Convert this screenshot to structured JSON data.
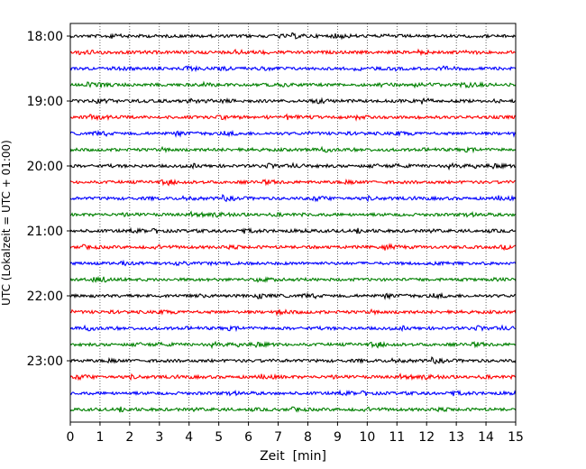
{
  "chart_data": {
    "type": "line",
    "subtype": "helicorder",
    "xlabel": "Zeit  [min]",
    "ylabel": "UTC (Lokalzeit = UTC + 01:00)",
    "xlim": [
      0,
      15
    ],
    "xticks": [
      0,
      1,
      2,
      3,
      4,
      5,
      6,
      7,
      8,
      9,
      10,
      11,
      12,
      13,
      14,
      15
    ],
    "grid": "vertical dotted lines at each minute",
    "y_tick_labels": [
      "18:00",
      "19:00",
      "20:00",
      "21:00",
      "22:00",
      "23:00"
    ],
    "traces_per_hour": 4,
    "trace_colors": [
      "#000000",
      "#ff0000",
      "#0000ff",
      "#008000"
    ],
    "trace_start_times": [
      "18:00",
      "18:15",
      "18:30",
      "18:45",
      "19:00",
      "19:15",
      "19:30",
      "19:45",
      "20:00",
      "20:15",
      "20:30",
      "20:45",
      "21:00",
      "21:15",
      "21:30",
      "21:45",
      "22:00",
      "22:15",
      "22:30",
      "22:45",
      "23:00",
      "23:15",
      "23:30",
      "23:45"
    ],
    "signal": "low-amplitude background noise, no distinct events"
  }
}
